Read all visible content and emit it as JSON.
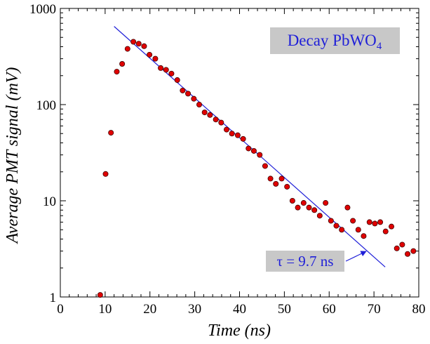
{
  "chart_data": {
    "type": "scatter",
    "xlabel": "Time (ns)",
    "ylabel": "Average PMT signal (mV)",
    "xlim": [
      0,
      80
    ],
    "ylim": [
      1,
      1000
    ],
    "yscale": "log",
    "grid": false,
    "x_ticks": [
      "0",
      "10",
      "20",
      "30",
      "40",
      "50",
      "60",
      "70",
      "80"
    ],
    "y_ticks": [
      "1",
      "10",
      "100",
      "1000"
    ],
    "title_box": {
      "prefix": "Decay PbWO",
      "subscript": "4"
    },
    "annotation": {
      "text": "τ = 9.7 ns"
    },
    "fit_line": {
      "x": [
        12,
        72.5
      ],
      "y": [
        650,
        2.05
      ]
    },
    "colors": {
      "points": "#e00000",
      "point_edge": "#400000",
      "fit": "#1f1fd8",
      "label_box": "#c8c8c8",
      "label_text": "#1f1fd8",
      "axis": "#000000"
    },
    "series": [
      {
        "x": [
          8.9,
          10.1,
          11.3,
          12.6,
          13.8,
          15.0,
          16.3,
          17.5,
          18.7,
          19.9,
          21.2,
          22.4,
          23.6,
          24.8,
          26.1,
          27.3,
          28.5,
          29.8,
          31.0,
          32.2,
          33.4,
          34.7,
          35.9,
          37.1,
          38.3,
          39.6,
          40.8,
          42.0,
          43.2,
          44.5,
          45.7,
          46.9,
          48.1,
          49.4,
          50.6,
          51.8,
          53.0,
          54.3,
          55.5,
          56.7,
          57.9,
          59.2,
          60.4,
          61.6,
          62.8,
          64.1,
          65.3,
          66.5,
          67.7,
          69.0,
          70.2,
          71.4,
          72.6,
          73.9,
          75.1,
          76.3,
          77.5,
          78.8
        ],
        "y": [
          1.05,
          19,
          51,
          220,
          265,
          380,
          450,
          430,
          405,
          330,
          300,
          240,
          230,
          210,
          180,
          140,
          130,
          115,
          100,
          83,
          78,
          70,
          65,
          55,
          50,
          48,
          44,
          35,
          33,
          30,
          23,
          17,
          15,
          17,
          14,
          10,
          8.5,
          9.5,
          8.5,
          8.0,
          7.0,
          9.5,
          6.2,
          5.5,
          5.0,
          8.5,
          6.2,
          5.0,
          4.3,
          6.0,
          5.8,
          6.0,
          4.8,
          5.4,
          3.2,
          3.5,
          2.8,
          3.0
        ]
      }
    ]
  }
}
